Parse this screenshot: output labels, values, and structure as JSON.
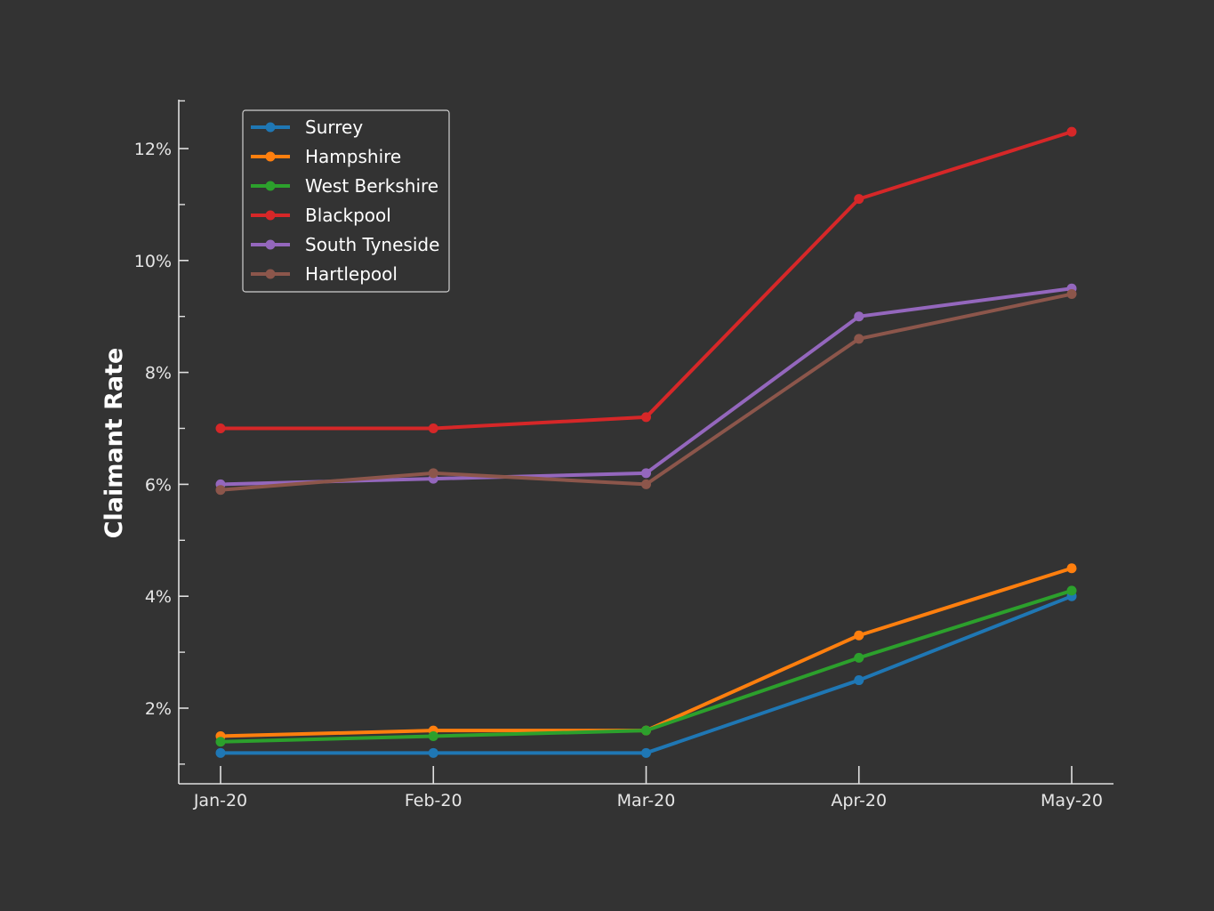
{
  "chart_data": {
    "type": "line",
    "title": "",
    "xlabel": "",
    "ylabel": "Claimant Rate",
    "categories": [
      "Jan-20",
      "Feb-20",
      "Mar-20",
      "Apr-20",
      "May-20"
    ],
    "ylim": [
      0.7,
      12.9
    ],
    "yticks": [
      2,
      4,
      6,
      8,
      10,
      12
    ],
    "ytick_labels": [
      "2%",
      "4%",
      "6%",
      "8%",
      "10%",
      "12%"
    ],
    "yminor_ticks": [
      1,
      3,
      5,
      7,
      9,
      11
    ],
    "legend_position": "top-left",
    "grid": false,
    "series": [
      {
        "name": "Surrey",
        "color": "#1f77b4",
        "values": [
          1.2,
          1.2,
          1.2,
          2.5,
          4.0
        ]
      },
      {
        "name": "Hampshire",
        "color": "#ff7f0e",
        "values": [
          1.5,
          1.6,
          1.6,
          3.3,
          4.5
        ]
      },
      {
        "name": "West Berkshire",
        "color": "#2ca02c",
        "values": [
          1.4,
          1.5,
          1.6,
          2.9,
          4.1
        ]
      },
      {
        "name": "Blackpool",
        "color": "#d62728",
        "values": [
          7.0,
          7.0,
          7.2,
          11.1,
          12.3
        ]
      },
      {
        "name": "South Tyneside",
        "color": "#9467bd",
        "values": [
          6.0,
          6.1,
          6.2,
          9.0,
          9.5
        ]
      },
      {
        "name": "Hartlepool",
        "color": "#8c564b",
        "values": [
          5.9,
          6.2,
          6.0,
          8.6,
          9.4
        ]
      }
    ]
  }
}
